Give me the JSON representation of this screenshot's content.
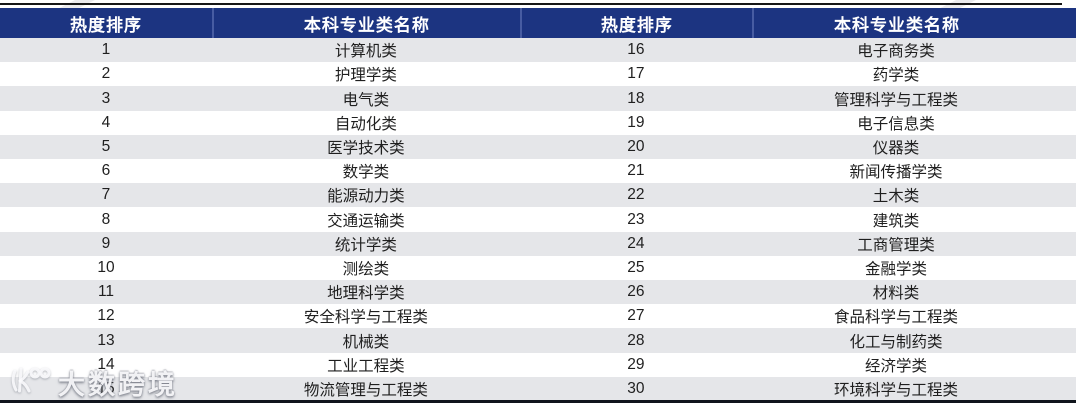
{
  "chart_data": {
    "type": "table",
    "columns": [
      "热度排序",
      "本科专业类名称",
      "热度排序",
      "本科专业类名称"
    ],
    "rows": [
      [
        1,
        "计算机类",
        16,
        "电子商务类"
      ],
      [
        2,
        "护理学类",
        17,
        "药学类"
      ],
      [
        3,
        "电气类",
        18,
        "管理科学与工程类"
      ],
      [
        4,
        "自动化类",
        19,
        "电子信息类"
      ],
      [
        5,
        "医学技术类",
        20,
        "仪器类"
      ],
      [
        6,
        "数学类",
        21,
        "新闻传播学类"
      ],
      [
        7,
        "能源动力类",
        22,
        "土木类"
      ],
      [
        8,
        "交通运输类",
        23,
        "建筑类"
      ],
      [
        9,
        "统计学类",
        24,
        "工商管理类"
      ],
      [
        10,
        "测绘类",
        25,
        "金融学类"
      ],
      [
        11,
        "地理科学类",
        26,
        "材料类"
      ],
      [
        12,
        "安全科学与工程类",
        27,
        "食品科学与工程类"
      ],
      [
        13,
        "机械类",
        28,
        "化工与制药类"
      ],
      [
        14,
        "工业工程类",
        29,
        "经济学类"
      ],
      [
        15,
        "物流管理与工程类",
        30,
        "环境科学与工程类"
      ]
    ],
    "layout": {
      "zebra_striping": true,
      "header_position": "top",
      "grid": "horizontal-bands"
    }
  },
  "watermark": {
    "text": "大数跨境",
    "logo": "dashukuajing-logo"
  },
  "colors": {
    "header_background": "#1c3481",
    "header_text": "#ffffff",
    "header_divider": "#475ca2",
    "row_gray": "#e5e6e9",
    "row_white": "#ffffff",
    "body_text": "#1f1f1f",
    "border_line": "#161616"
  }
}
